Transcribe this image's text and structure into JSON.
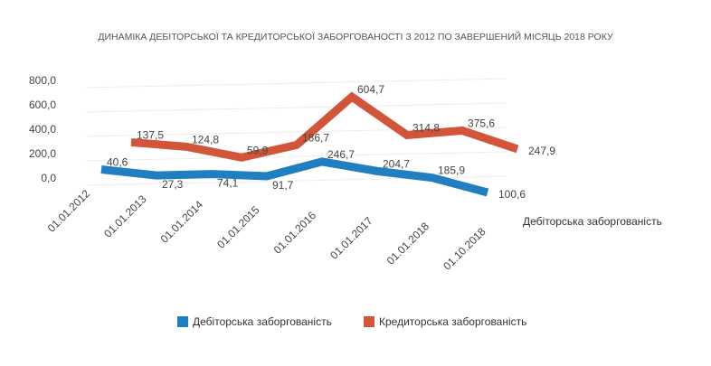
{
  "chart_data": {
    "type": "line",
    "style": "3d-line",
    "title": "ДИНАМІКА ДЕБІТОРСЬКОЇ ТА КРЕДИТОРСЬКОЇ ЗАБОРГОВАНОСТІ З 2012 ПО ЗАВЕРШЕНИЙ МІСЯЦЬ 2018 РОКУ",
    "categories": [
      "01.01.2012",
      "01.01.2013",
      "01.01.2014",
      "01.01.2015",
      "01.01.2016",
      "01.01.2017",
      "01.01.2018",
      "01.10.2018"
    ],
    "y_ticks": [
      "0,0",
      "200,0",
      "400,0",
      "600,0",
      "800,0"
    ],
    "ylim": [
      0,
      800
    ],
    "grid": true,
    "depth_axis_label": "Дебіторська заборгованість",
    "legend_position": "bottom",
    "series": [
      {
        "name": "Дебіторська заборгованість",
        "color": "#1f7fc0",
        "values": [
          40.6,
          27.3,
          74.1,
          91.7,
          246.7,
          204.7,
          185.9,
          100.6
        ],
        "labels": [
          "40,6",
          "27,3",
          "74,1",
          "91,7",
          "246,7",
          "204,7",
          "185,9",
          "100,6"
        ]
      },
      {
        "name": "Кредиторська заборгованість",
        "color": "#d2553a",
        "values": [
          137.5,
          124.8,
          59.9,
          186.7,
          604.7,
          314.8,
          375.6,
          247.9
        ],
        "labels": [
          "137,5",
          "124,8",
          "59,9",
          "186,7",
          "604,7",
          "314,8",
          "375,6",
          "247,9"
        ]
      }
    ]
  }
}
